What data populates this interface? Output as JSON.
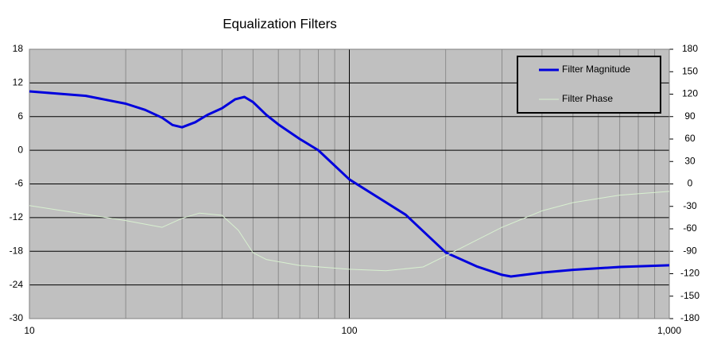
{
  "chart_data": {
    "type": "line",
    "title": "Equalization Filters",
    "xscale": "log",
    "xlim": [
      10,
      1000
    ],
    "xticks": [
      10,
      100,
      {
        "value": 1000,
        "label": "1,000"
      }
    ],
    "x_minor_ticks": [
      20,
      30,
      40,
      50,
      60,
      70,
      80,
      90,
      200,
      300,
      400,
      500,
      600,
      700,
      800,
      900
    ],
    "ylim": [
      -30,
      18
    ],
    "yticks": [
      -30,
      -24,
      -18,
      -12,
      -6,
      0,
      6,
      12,
      18
    ],
    "y2lim": [
      -180,
      180
    ],
    "y2ticks": [
      -180,
      -150,
      -120,
      -90,
      -60,
      -30,
      0,
      30,
      60,
      90,
      120,
      150,
      180
    ],
    "grid": true,
    "legend": "upper right",
    "background": "#c0c0c0",
    "series": [
      {
        "name": "Filter Magnitude",
        "color": "#0000dd",
        "axis": "y",
        "width": 3,
        "x": [
          10,
          15,
          20,
          23,
          26,
          28,
          30,
          33,
          36,
          40,
          44,
          47,
          50,
          55,
          60,
          70,
          80,
          100,
          150,
          200,
          250,
          300,
          320,
          400,
          500,
          700,
          1000
        ],
        "values": [
          10.5,
          9.7,
          8.3,
          7.2,
          5.8,
          4.5,
          4.1,
          5,
          6.3,
          7.5,
          9.1,
          9.5,
          8.6,
          6.3,
          4.6,
          2,
          0,
          -5.2,
          -11.5,
          -18.2,
          -20.7,
          -22.2,
          -22.5,
          -21.8,
          -21.3,
          -20.8,
          -20.5
        ]
      },
      {
        "name": "Filter Phase",
        "color": "#d8f0d0",
        "axis": "y2",
        "width": 1,
        "x": [
          10,
          20,
          26,
          30,
          34,
          40,
          45,
          50,
          55,
          70,
          100,
          130,
          170,
          200,
          300,
          400,
          500,
          700,
          1000
        ],
        "values": [
          -29,
          -49,
          -58,
          -46,
          -39,
          -42,
          -62,
          -92,
          -101,
          -109,
          -114,
          -116,
          -111,
          -96,
          -58,
          -36,
          -25,
          -15,
          -10
        ]
      }
    ]
  }
}
